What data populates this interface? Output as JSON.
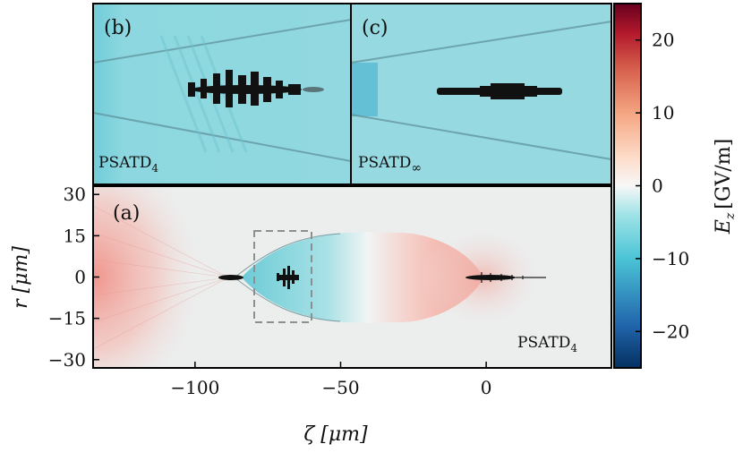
{
  "chart_data": [
    {
      "type": "heatmap",
      "panel_label": "(a)",
      "method_label": "PSATD",
      "method_subscript": "4",
      "xlabel": "ζ [μm]",
      "ylabel": "r [μm]",
      "xlim": [
        -135,
        43
      ],
      "ylim": [
        -33,
        33
      ],
      "x_ticks": [
        "−100",
        "−50",
        "0"
      ],
      "x_tick_values": [
        -100,
        -50,
        0
      ],
      "y_ticks": [
        "30",
        "15",
        "0",
        "−15",
        "−30"
      ],
      "y_tick_values": [
        30,
        15,
        0,
        -15,
        -30
      ],
      "zoom_box": {
        "x_range": [
          -78,
          -58
        ],
        "r_range": [
          -16,
          16
        ]
      }
    },
    {
      "type": "heatmap",
      "panel_label": "(b)",
      "method_label": "PSATD",
      "method_subscript": "4"
    },
    {
      "type": "heatmap",
      "panel_label": "(c)",
      "method_label": "PSATD",
      "method_subscript": "∞"
    }
  ],
  "colorbar": {
    "label": "E",
    "label_subscript": "z",
    "label_unit": "[GV/m]",
    "range": [
      -25,
      25
    ],
    "ticks": [
      "20",
      "10",
      "0",
      "−10",
      "−20"
    ],
    "tick_values": [
      20,
      10,
      0,
      -10,
      -20
    ],
    "colors": [
      "#053061",
      "#2166ac",
      "#4bc4d6",
      "#9fe3e6",
      "#f7f7f7",
      "#fddbc7",
      "#f4a582",
      "#d6604d",
      "#b2182b",
      "#67001f"
    ]
  }
}
